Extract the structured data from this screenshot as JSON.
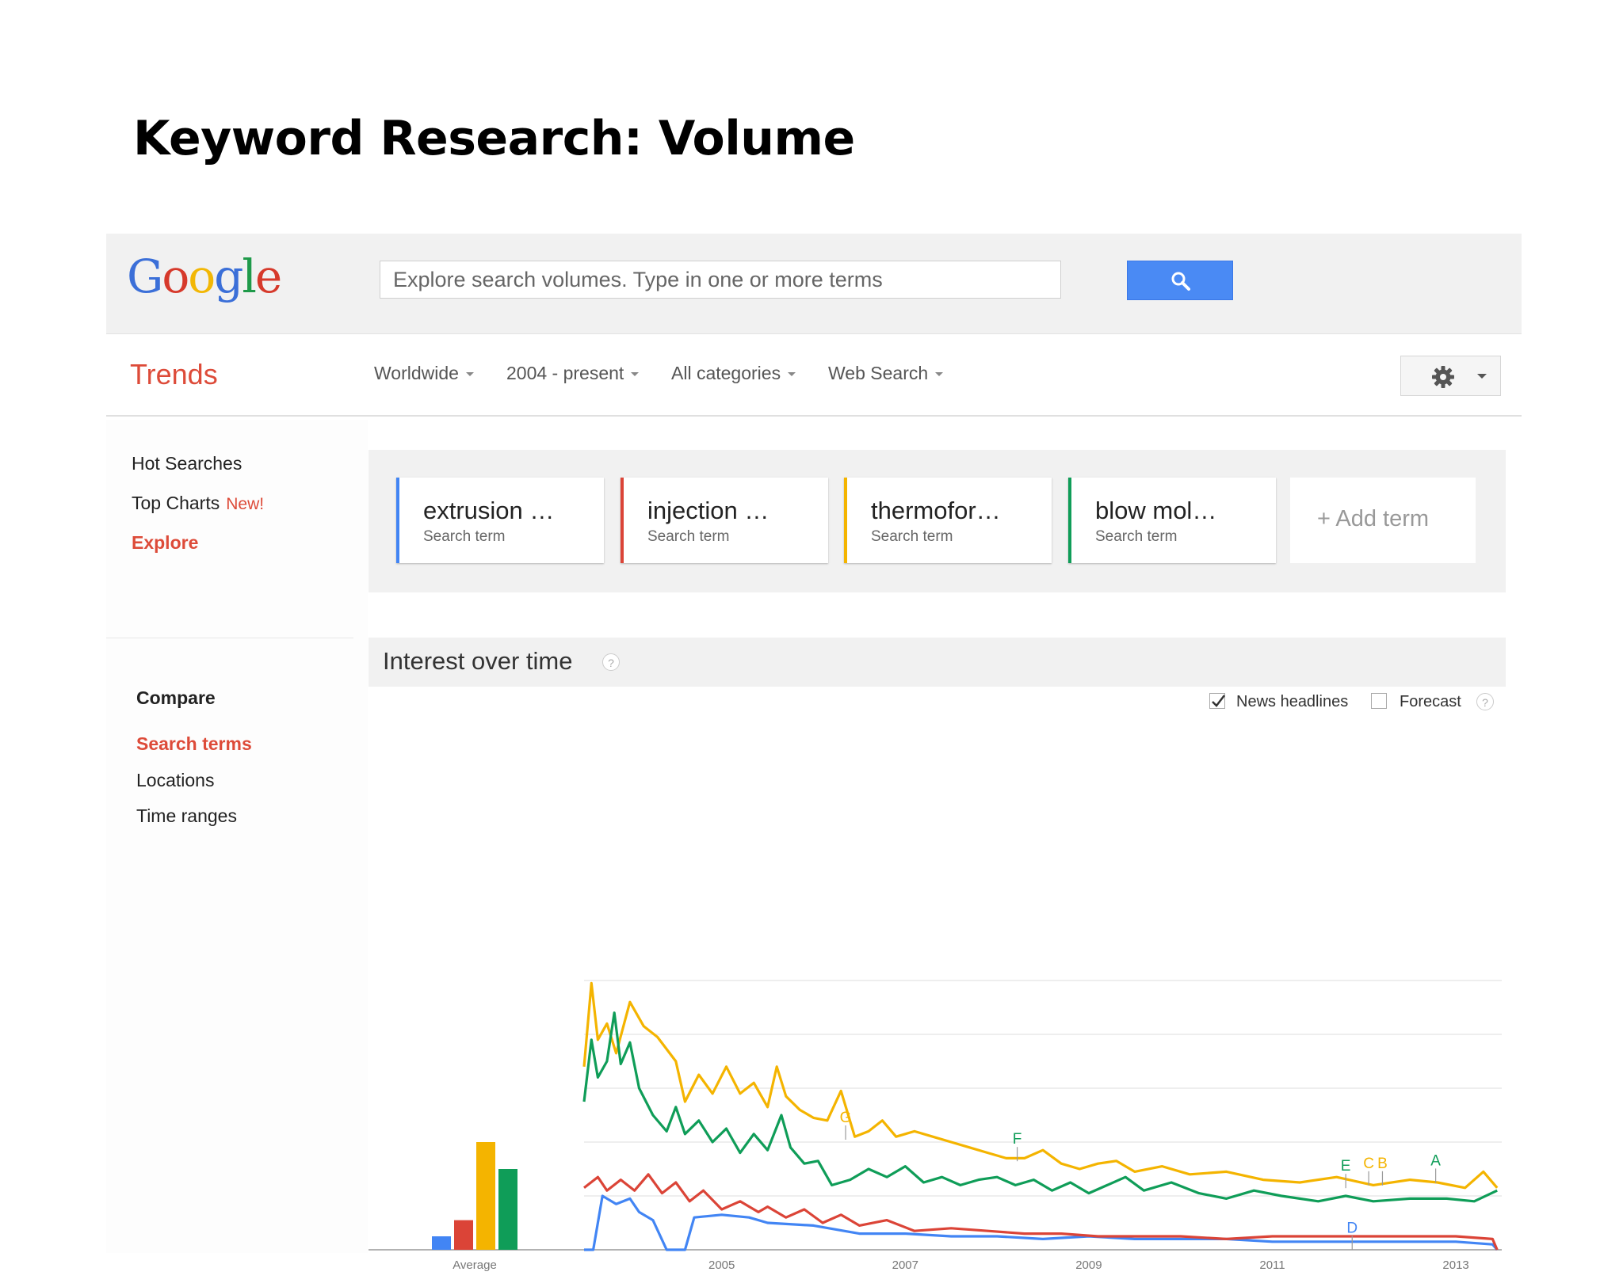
{
  "slide": {
    "title": "Keyword Research: Volume"
  },
  "logo": {
    "letters": [
      "G",
      "o",
      "o",
      "g",
      "l",
      "e"
    ],
    "colors": [
      "#3b6fd8",
      "#d6392b",
      "#f2b705",
      "#3b6fd8",
      "#1f9a4a",
      "#d6392b"
    ]
  },
  "search": {
    "placeholder": "Explore search volumes. Type in one or more terms",
    "icon": "search-icon"
  },
  "nav": {
    "brand": "Trends",
    "filters": [
      "Worldwide",
      "2004 - present",
      "All categories",
      "Web Search"
    ],
    "settings_icon": "gear-icon"
  },
  "sidebar": {
    "hot_searches": "Hot Searches",
    "top_charts": "Top Charts",
    "new_badge": "New!",
    "explore": "Explore",
    "compare": "Compare",
    "search_terms": "Search terms",
    "locations": "Locations",
    "time_ranges": "Time ranges"
  },
  "terms": [
    {
      "name": "extrusion …",
      "sub": "Search term",
      "color": "#4285f4"
    },
    {
      "name": "injection …",
      "sub": "Search term",
      "color": "#db4437"
    },
    {
      "name": "thermofor…",
      "sub": "Search term",
      "color": "#f4b400"
    },
    {
      "name": "blow mol…",
      "sub": "Search term",
      "color": "#0f9d58"
    }
  ],
  "add_term": "+ Add term",
  "interest": {
    "title": "Interest over time",
    "news_headlines": "News headlines",
    "news_checked": true,
    "forecast": "Forecast",
    "forecast_checked": false
  },
  "chart_data": {
    "type": "line",
    "x_range": [
      "2004-01",
      "2013-12"
    ],
    "ylim": [
      0,
      100
    ],
    "grid": true,
    "x_tick_labels": [
      "2005",
      "2007",
      "2009",
      "2011",
      "2013"
    ],
    "average_label": "Average",
    "averages": [
      {
        "term": "extrusion …",
        "value": 5,
        "color": "#4285f4"
      },
      {
        "term": "injection …",
        "value": 11,
        "color": "#db4437"
      },
      {
        "term": "thermofor…",
        "value": 40,
        "color": "#f4b400"
      },
      {
        "term": "blow mol…",
        "value": 30,
        "color": "#0f9d58"
      }
    ],
    "series": [
      {
        "term": "extrusion …",
        "color": "#4285f4",
        "points": [
          [
            2004.0,
            0
          ],
          [
            2004.1,
            0
          ],
          [
            2004.2,
            20
          ],
          [
            2004.35,
            17
          ],
          [
            2004.5,
            19
          ],
          [
            2004.6,
            14
          ],
          [
            2004.75,
            11
          ],
          [
            2004.9,
            0
          ],
          [
            2005.1,
            0
          ],
          [
            2005.2,
            12
          ],
          [
            2005.5,
            13
          ],
          [
            2005.8,
            12
          ],
          [
            2006.0,
            10
          ],
          [
            2006.5,
            9
          ],
          [
            2007.0,
            6
          ],
          [
            2007.5,
            6
          ],
          [
            2008.0,
            5
          ],
          [
            2008.5,
            5
          ],
          [
            2009.0,
            4
          ],
          [
            2009.5,
            5
          ],
          [
            2010.0,
            4
          ],
          [
            2010.5,
            4
          ],
          [
            2011.0,
            4
          ],
          [
            2011.5,
            3
          ],
          [
            2012.0,
            3
          ],
          [
            2012.5,
            3
          ],
          [
            2013.0,
            3
          ],
          [
            2013.5,
            3
          ],
          [
            2013.9,
            2
          ],
          [
            2013.95,
            0
          ]
        ]
      },
      {
        "term": "injection …",
        "color": "#db4437",
        "points": [
          [
            2004.0,
            23
          ],
          [
            2004.15,
            27
          ],
          [
            2004.25,
            22
          ],
          [
            2004.4,
            26
          ],
          [
            2004.55,
            22
          ],
          [
            2004.7,
            28
          ],
          [
            2004.85,
            21
          ],
          [
            2005.0,
            25
          ],
          [
            2005.15,
            18
          ],
          [
            2005.3,
            22
          ],
          [
            2005.5,
            15
          ],
          [
            2005.7,
            18
          ],
          [
            2005.9,
            14
          ],
          [
            2006.0,
            16
          ],
          [
            2006.2,
            12
          ],
          [
            2006.4,
            15
          ],
          [
            2006.6,
            10
          ],
          [
            2006.8,
            13
          ],
          [
            2007.0,
            9
          ],
          [
            2007.3,
            11
          ],
          [
            2007.6,
            7
          ],
          [
            2008.0,
            8
          ],
          [
            2008.4,
            7
          ],
          [
            2008.8,
            6
          ],
          [
            2009.2,
            6
          ],
          [
            2009.6,
            5
          ],
          [
            2010.0,
            5
          ],
          [
            2010.5,
            5
          ],
          [
            2011.0,
            4
          ],
          [
            2011.5,
            5
          ],
          [
            2012.0,
            5
          ],
          [
            2012.5,
            5
          ],
          [
            2013.0,
            5
          ],
          [
            2013.5,
            5
          ],
          [
            2013.9,
            4
          ],
          [
            2013.95,
            0
          ]
        ]
      },
      {
        "term": "thermofor…",
        "color": "#f4b400",
        "points": [
          [
            2004.0,
            68
          ],
          [
            2004.08,
            99
          ],
          [
            2004.15,
            78
          ],
          [
            2004.25,
            84
          ],
          [
            2004.35,
            73
          ],
          [
            2004.5,
            92
          ],
          [
            2004.65,
            83
          ],
          [
            2004.8,
            79
          ],
          [
            2005.0,
            70
          ],
          [
            2005.1,
            55
          ],
          [
            2005.25,
            65
          ],
          [
            2005.4,
            58
          ],
          [
            2005.55,
            68
          ],
          [
            2005.7,
            58
          ],
          [
            2005.85,
            62
          ],
          [
            2006.0,
            53
          ],
          [
            2006.1,
            68
          ],
          [
            2006.2,
            57
          ],
          [
            2006.35,
            52
          ],
          [
            2006.5,
            49
          ],
          [
            2006.65,
            48
          ],
          [
            2006.8,
            59
          ],
          [
            2006.95,
            42
          ],
          [
            2007.1,
            44
          ],
          [
            2007.25,
            48
          ],
          [
            2007.4,
            42
          ],
          [
            2007.6,
            44
          ],
          [
            2007.8,
            42
          ],
          [
            2008.0,
            40
          ],
          [
            2008.2,
            38
          ],
          [
            2008.4,
            36
          ],
          [
            2008.6,
            34
          ],
          [
            2008.8,
            34
          ],
          [
            2009.0,
            37
          ],
          [
            2009.2,
            32
          ],
          [
            2009.4,
            30
          ],
          [
            2009.6,
            32
          ],
          [
            2009.8,
            33
          ],
          [
            2010.0,
            29
          ],
          [
            2010.3,
            31
          ],
          [
            2010.6,
            28
          ],
          [
            2011.0,
            29
          ],
          [
            2011.4,
            26
          ],
          [
            2011.8,
            25
          ],
          [
            2012.2,
            27
          ],
          [
            2012.6,
            24
          ],
          [
            2013.0,
            26
          ],
          [
            2013.3,
            25
          ],
          [
            2013.6,
            23
          ],
          [
            2013.8,
            29
          ],
          [
            2013.95,
            23
          ]
        ]
      },
      {
        "term": "blow mol…",
        "color": "#0f9d58",
        "points": [
          [
            2004.0,
            55
          ],
          [
            2004.08,
            78
          ],
          [
            2004.15,
            64
          ],
          [
            2004.25,
            70
          ],
          [
            2004.33,
            88
          ],
          [
            2004.4,
            69
          ],
          [
            2004.5,
            77
          ],
          [
            2004.6,
            60
          ],
          [
            2004.75,
            50
          ],
          [
            2004.9,
            44
          ],
          [
            2005.0,
            53
          ],
          [
            2005.1,
            43
          ],
          [
            2005.25,
            48
          ],
          [
            2005.4,
            40
          ],
          [
            2005.55,
            45
          ],
          [
            2005.7,
            36
          ],
          [
            2005.85,
            43
          ],
          [
            2006.0,
            37
          ],
          [
            2006.15,
            50
          ],
          [
            2006.25,
            38
          ],
          [
            2006.4,
            32
          ],
          [
            2006.55,
            33
          ],
          [
            2006.7,
            24
          ],
          [
            2006.9,
            26
          ],
          [
            2007.1,
            30
          ],
          [
            2007.3,
            27
          ],
          [
            2007.5,
            31
          ],
          [
            2007.7,
            25
          ],
          [
            2007.9,
            27
          ],
          [
            2008.1,
            24
          ],
          [
            2008.3,
            26
          ],
          [
            2008.5,
            27
          ],
          [
            2008.7,
            24
          ],
          [
            2008.9,
            26
          ],
          [
            2009.1,
            22
          ],
          [
            2009.3,
            25
          ],
          [
            2009.5,
            21
          ],
          [
            2009.7,
            24
          ],
          [
            2009.9,
            27
          ],
          [
            2010.1,
            22
          ],
          [
            2010.4,
            25
          ],
          [
            2010.7,
            21
          ],
          [
            2011.0,
            19
          ],
          [
            2011.3,
            22
          ],
          [
            2011.6,
            20
          ],
          [
            2012.0,
            18
          ],
          [
            2012.3,
            20
          ],
          [
            2012.6,
            18
          ],
          [
            2013.0,
            19
          ],
          [
            2013.4,
            19
          ],
          [
            2013.7,
            18
          ],
          [
            2013.95,
            22
          ]
        ]
      }
    ],
    "annotations": [
      {
        "label": "G",
        "x": 2006.85,
        "y": 45,
        "color": "#f4b400"
      },
      {
        "label": "F",
        "x": 2008.72,
        "y": 37,
        "color": "#0f9d58"
      },
      {
        "label": "E",
        "x": 2012.3,
        "y": 27,
        "color": "#0f9d58"
      },
      {
        "label": "C",
        "x": 2012.55,
        "y": 28,
        "color": "#f4b400"
      },
      {
        "label": "B",
        "x": 2012.7,
        "y": 28,
        "color": "#f4b400"
      },
      {
        "label": "A",
        "x": 2013.28,
        "y": 29,
        "color": "#0f9d58"
      },
      {
        "label": "D",
        "x": 2012.37,
        "y": 4,
        "color": "#4285f4"
      }
    ]
  }
}
